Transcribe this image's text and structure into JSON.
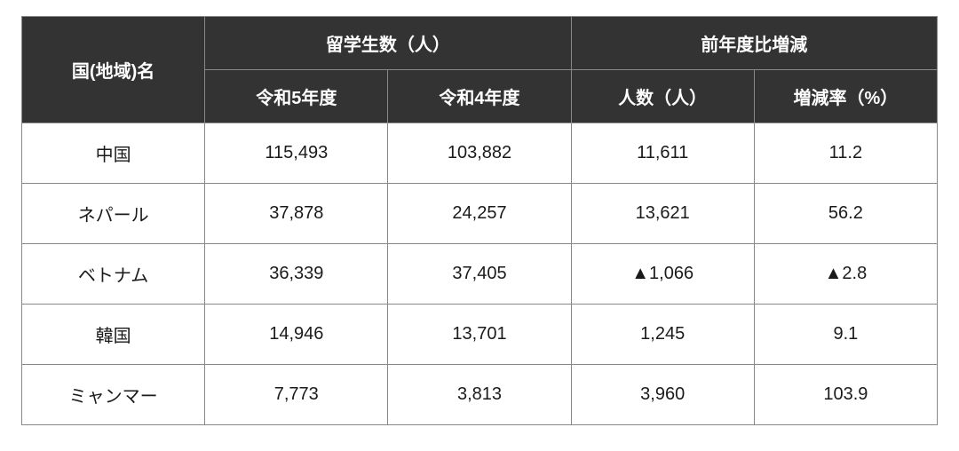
{
  "table": {
    "header_bg": "#333333",
    "header_fg": "#ffffff",
    "border_color": "#888888",
    "cell_fg": "#1a1a1a",
    "background_color": "#ffffff",
    "font_size_header": 20,
    "font_size_body": 20,
    "columns": {
      "country": "国(地域)名",
      "students_group": "留学生数（人）",
      "change_group": "前年度比増減",
      "year_r5": "令和5年度",
      "year_r4": "令和4年度",
      "change_count": "人数（人）",
      "change_rate": "増減率（%）"
    },
    "rows": [
      {
        "country": "中国",
        "r5": "115,493",
        "r4": "103,882",
        "change_count": "11,611",
        "change_rate": "11.2"
      },
      {
        "country": "ネパール",
        "r5": "37,878",
        "r4": "24,257",
        "change_count": "13,621",
        "change_rate": "56.2"
      },
      {
        "country": "ベトナム",
        "r5": "36,339",
        "r4": "37,405",
        "change_count": "▲1,066",
        "change_rate": "▲2.8"
      },
      {
        "country": "韓国",
        "r5": "14,946",
        "r4": "13,701",
        "change_count": "1,245",
        "change_rate": "9.1"
      },
      {
        "country": "ミャンマー",
        "r5": "7,773",
        "r4": "3,813",
        "change_count": "3,960",
        "change_rate": "103.9"
      }
    ]
  }
}
